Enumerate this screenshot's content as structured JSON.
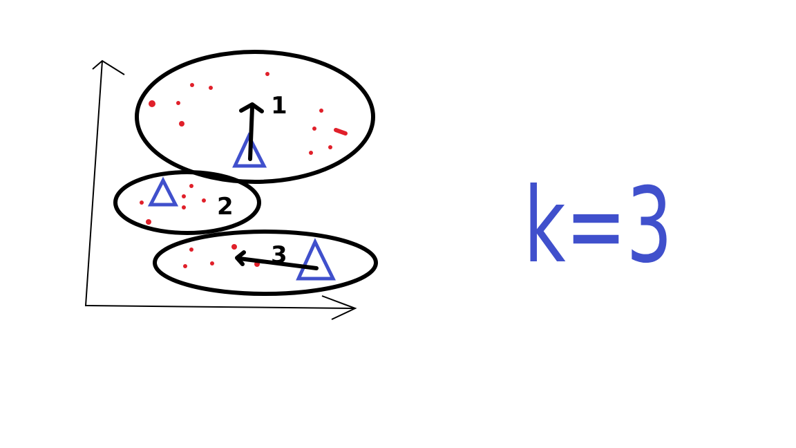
{
  "clusters": [
    {
      "label": "1"
    },
    {
      "label": "2"
    },
    {
      "label": "3"
    }
  ],
  "caption": "k=3"
}
